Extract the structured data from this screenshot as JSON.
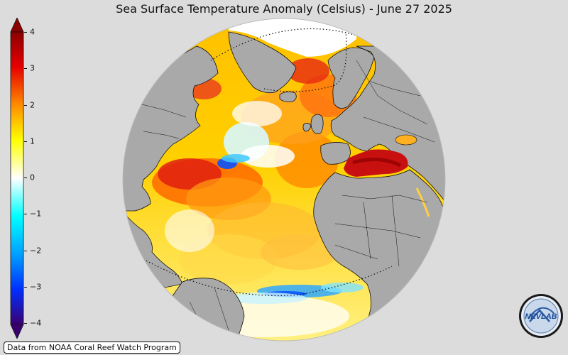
{
  "title": "Sea Surface Temperature Anomaly (Celsius) - June 27 2025",
  "colorbar": {
    "ticks": [
      "4",
      "3",
      "2",
      "1",
      "0",
      "−1",
      "−2",
      "−3",
      "−4"
    ],
    "min": -4,
    "max": 4,
    "colors": {
      "max": "#8b0000",
      "high": "#e60000",
      "warm": "#ff8c00",
      "mild": "#ffff00",
      "zero": "#ffffff",
      "cool": "#00ffff",
      "cold": "#0050ff",
      "min": "#3a0070"
    }
  },
  "map": {
    "projection": "orthographic",
    "land_color": "#a9a9a9",
    "ocean_colors": [
      "#ffd200",
      "#ffe840",
      "#ff9a10",
      "#ff4a00",
      "#d81818",
      "#ffffff",
      "#b8f4ff"
    ]
  },
  "logo": {
    "text": "NEVLAB",
    "icon": "nevlab-logo-icon"
  },
  "credit": "Data from NOAA Coral Reef Watch Program"
}
